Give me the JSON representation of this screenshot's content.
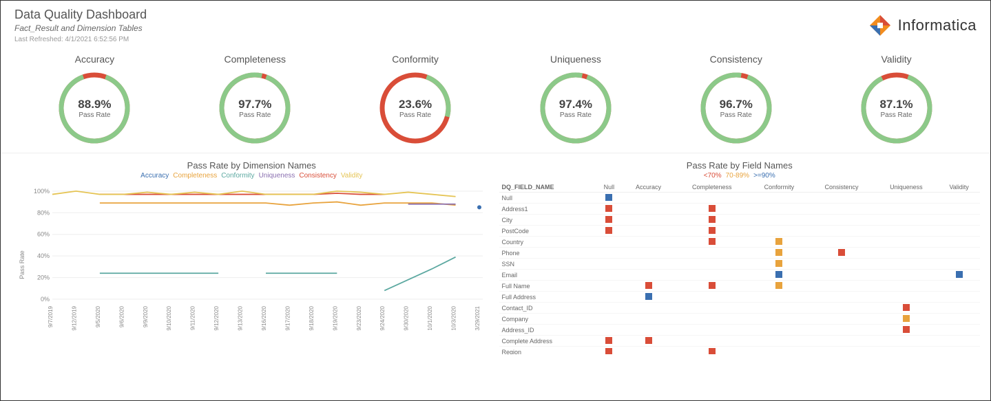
{
  "header": {
    "title": "Data Quality Dashboard",
    "subtitle": "Fact_Result and Dimension Tables",
    "refreshed": "Last Refreshed: 4/1/2021 6:52:56 PM",
    "logo_text": "Informatica"
  },
  "colors": {
    "green": "#8cc989",
    "red": "#d94d38",
    "orange": "#e8a33d",
    "blue": "#3a6fb0",
    "teal": "#5ba8a0",
    "purple": "#8a6fb0",
    "yellow": "#e5c454"
  },
  "gauges": [
    {
      "title": "Accuracy",
      "value": 88.9,
      "display": "88.9%",
      "label": "Pass Rate"
    },
    {
      "title": "Completeness",
      "value": 97.7,
      "display": "97.7%",
      "label": "Pass Rate"
    },
    {
      "title": "Conformity",
      "value": 23.6,
      "display": "23.6%",
      "label": "Pass Rate"
    },
    {
      "title": "Uniqueness",
      "value": 97.4,
      "display": "97.4%",
      "label": "Pass Rate"
    },
    {
      "title": "Consistency",
      "value": 96.7,
      "display": "96.7%",
      "label": "Pass Rate"
    },
    {
      "title": "Validity",
      "value": 87.1,
      "display": "87.1%",
      "label": "Pass Rate"
    }
  ],
  "gauge_style": {
    "pass_color": "#8cc989",
    "fail_color": "#d94d38",
    "ring_width": 7,
    "radius": 48
  },
  "line_chart": {
    "title": "Pass Rate by Dimension Names",
    "y_label": "Pass Rate",
    "legend": [
      {
        "label": "Accuracy",
        "color": "#3a6fb0"
      },
      {
        "label": "Completeness",
        "color": "#e8a33d"
      },
      {
        "label": "Conformity",
        "color": "#5ba8a0"
      },
      {
        "label": "Uniqueness",
        "color": "#8a6fb0"
      },
      {
        "label": "Consistency",
        "color": "#d94d38"
      },
      {
        "label": "Validity",
        "color": "#e5c454"
      }
    ],
    "y_ticks": [
      "0%",
      "20%",
      "40%",
      "60%",
      "80%",
      "100%"
    ],
    "x_labels": [
      "9/7/2019",
      "9/12/2019",
      "9/5/2020",
      "9/6/2020",
      "9/9/2020",
      "9/10/2020",
      "9/11/2020",
      "9/12/2020",
      "9/13/2020",
      "9/16/2020",
      "9/17/2020",
      "9/18/2020",
      "9/19/2020",
      "9/23/2020",
      "9/24/2020",
      "9/30/2020",
      "10/1/2020",
      "10/3/2020",
      "3/29/2021"
    ],
    "ylim": [
      0,
      105
    ],
    "series": {
      "Accuracy": [
        {
          "x": 18,
          "y": 85
        }
      ],
      "Completeness": [
        {
          "x": 2,
          "y": 89
        },
        {
          "x": 3,
          "y": 89
        },
        {
          "x": 4,
          "y": 89
        },
        {
          "x": 5,
          "y": 89
        },
        {
          "x": 6,
          "y": 89
        },
        {
          "x": 7,
          "y": 89
        },
        {
          "x": 8,
          "y": 89
        },
        {
          "x": 9,
          "y": 89
        },
        {
          "x": 10,
          "y": 87
        },
        {
          "x": 11,
          "y": 89
        },
        {
          "x": 12,
          "y": 90
        },
        {
          "x": 13,
          "y": 87
        },
        {
          "x": 14,
          "y": 89
        },
        {
          "x": 15,
          "y": 89
        },
        {
          "x": 16,
          "y": 89
        },
        {
          "x": 17,
          "y": 87
        }
      ],
      "Conformity": [
        {
          "x": 2,
          "y": 24
        },
        {
          "x": 3,
          "y": 24
        },
        {
          "x": 4,
          "y": 24
        },
        {
          "x": 5,
          "y": 24
        },
        {
          "x": 6,
          "y": 24
        },
        {
          "x": 7,
          "y": 24
        },
        null,
        {
          "x": 9,
          "y": 24
        },
        {
          "x": 10,
          "y": 24
        },
        {
          "x": 11,
          "y": 24
        },
        {
          "x": 12,
          "y": 24
        },
        null,
        {
          "x": 14,
          "y": 8
        },
        {
          "x": 15,
          "y": 18
        },
        {
          "x": 16,
          "y": 28
        },
        {
          "x": 17,
          "y": 39
        }
      ],
      "Uniqueness": [
        {
          "x": 15,
          "y": 88
        },
        {
          "x": 16,
          "y": 88
        },
        {
          "x": 17,
          "y": 88
        }
      ],
      "Consistency": [
        {
          "x": 2,
          "y": 97
        },
        {
          "x": 3,
          "y": 97
        },
        {
          "x": 4,
          "y": 97
        },
        {
          "x": 5,
          "y": 97
        },
        {
          "x": 6,
          "y": 97
        },
        {
          "x": 7,
          "y": 97
        },
        {
          "x": 8,
          "y": 97
        },
        {
          "x": 9,
          "y": 97
        },
        {
          "x": 10,
          "y": 97
        },
        {
          "x": 11,
          "y": 97
        },
        {
          "x": 12,
          "y": 98
        },
        {
          "x": 13,
          "y": 97
        },
        {
          "x": 14,
          "y": 97
        }
      ],
      "Validity": [
        {
          "x": 0,
          "y": 97
        },
        {
          "x": 1,
          "y": 100
        },
        {
          "x": 2,
          "y": 97
        },
        {
          "x": 3,
          "y": 97
        },
        {
          "x": 4,
          "y": 99
        },
        {
          "x": 5,
          "y": 97
        },
        {
          "x": 6,
          "y": 99
        },
        {
          "x": 7,
          "y": 97
        },
        {
          "x": 8,
          "y": 100
        },
        {
          "x": 9,
          "y": 97
        },
        {
          "x": 10,
          "y": 97
        },
        {
          "x": 11,
          "y": 97
        },
        {
          "x": 12,
          "y": 100
        },
        {
          "x": 13,
          "y": 99
        },
        {
          "x": 14,
          "y": 97
        },
        {
          "x": 15,
          "y": 99
        },
        {
          "x": 16,
          "y": 97
        },
        {
          "x": 17,
          "y": 95
        }
      ]
    }
  },
  "matrix": {
    "title": "Pass Rate by Field Names",
    "legend": [
      {
        "label": "<70%",
        "color": "#d94d38"
      },
      {
        "label": "70-89%",
        "color": "#e8a33d"
      },
      {
        "label": ">=90%",
        "color": "#3a6fb0"
      }
    ],
    "row_header": "DQ_FIELD_NAME",
    "columns": [
      "Null",
      "Accuracy",
      "Completeness",
      "Conformity",
      "Consistency",
      "Uniqueness",
      "Validity"
    ],
    "rows": [
      {
        "name": "Null",
        "cells": {
          "Null": "#3a6fb0"
        }
      },
      {
        "name": "Address1",
        "cells": {
          "Null": "#d94d38",
          "Completeness": "#d94d38"
        }
      },
      {
        "name": "City",
        "cells": {
          "Null": "#d94d38",
          "Completeness": "#d94d38"
        }
      },
      {
        "name": "PostCode",
        "cells": {
          "Null": "#d94d38",
          "Completeness": "#d94d38"
        }
      },
      {
        "name": "Country",
        "cells": {
          "Completeness": "#d94d38",
          "Conformity": "#e8a33d"
        }
      },
      {
        "name": "Phone",
        "cells": {
          "Conformity": "#e8a33d",
          "Consistency": "#d94d38"
        }
      },
      {
        "name": "SSN",
        "cells": {
          "Conformity": "#e8a33d"
        }
      },
      {
        "name": "Email",
        "cells": {
          "Conformity": "#3a6fb0",
          "Validity": "#3a6fb0"
        }
      },
      {
        "name": "Full Name",
        "cells": {
          "Accuracy": "#d94d38",
          "Completeness": "#d94d38",
          "Conformity": "#e8a33d"
        }
      },
      {
        "name": "Full Address",
        "cells": {
          "Accuracy": "#3a6fb0"
        }
      },
      {
        "name": "Contact_ID",
        "cells": {
          "Uniqueness": "#d94d38"
        }
      },
      {
        "name": "Company",
        "cells": {
          "Uniqueness": "#e8a33d"
        }
      },
      {
        "name": "Address_ID",
        "cells": {
          "Uniqueness": "#d94d38"
        }
      },
      {
        "name": "Complete Address",
        "cells": {
          "Null": "#d94d38",
          "Accuracy": "#d94d38"
        }
      },
      {
        "name": "Region",
        "cells": {
          "Null": "#d94d38",
          "Completeness": "#d94d38"
        }
      }
    ]
  }
}
